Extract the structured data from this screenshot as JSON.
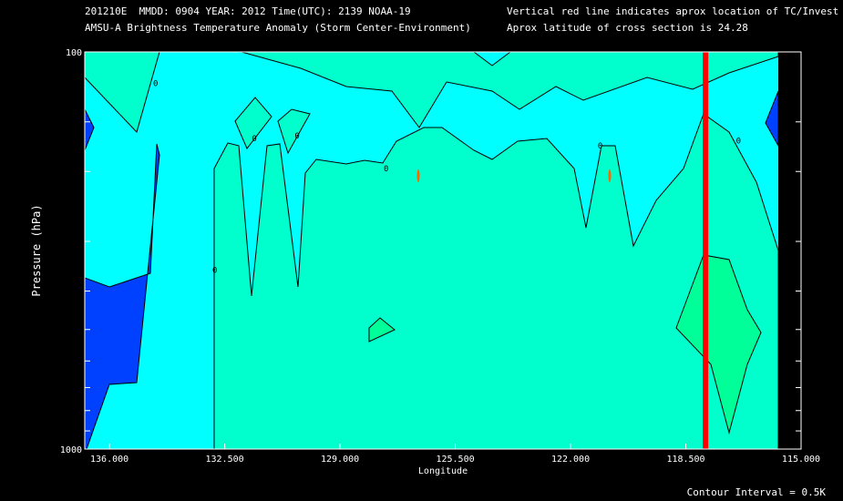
{
  "header": {
    "line1_left": "201210E  MMDD: 0904 YEAR: 2012 Time(UTC): 2139 NOAA-19",
    "line2_left": "AMSU-A Brightness Temperature Anomaly (Storm Center-Environment)",
    "line1_right": "Vertical red line indicates aprox location of TC/Invest",
    "line2_right": "Aprox latitude of cross section is 24.28"
  },
  "footer": {
    "contour_interval": "Contour Interval = 0.5K"
  },
  "colors": {
    "background": "#000000",
    "dark_blue": "#0040ff",
    "cyan": "#00ffff",
    "aquamarine": "#00ffcc",
    "green": "#00ff99",
    "orange": "#ff6600",
    "red_line": "#ff0000",
    "contour": "#000000"
  },
  "chart_data": {
    "type": "contour",
    "title": "",
    "xlabel": "Longitude",
    "ylabel": "Pressure (hPa)",
    "x_reversed": true,
    "xlim": [
      136.75,
      115.0
    ],
    "ylim": [
      1000,
      100
    ],
    "y_scale": "log",
    "x_ticks": [
      "136.000",
      "132.500",
      "129.000",
      "125.500",
      "122.000",
      "118.500",
      "115.000"
    ],
    "y_tick_labels": [
      "100",
      "1000"
    ],
    "y_minor_ticks": [
      150,
      200,
      300,
      400,
      500,
      600,
      700,
      800,
      900
    ],
    "tc_longitude": 117.9,
    "contour_labels": [
      {
        "text": "0",
        "lon": 134.6,
        "p": 122
      },
      {
        "text": "0",
        "lon": 132.8,
        "p": 360
      },
      {
        "text": "0",
        "lon": 131.6,
        "p": 168
      },
      {
        "text": "0",
        "lon": 130.3,
        "p": 165
      },
      {
        "text": "0",
        "lon": 127.6,
        "p": 200
      },
      {
        "text": "0",
        "lon": 121.1,
        "p": 175
      },
      {
        "text": "0",
        "lon": 116.9,
        "p": 170
      }
    ]
  }
}
